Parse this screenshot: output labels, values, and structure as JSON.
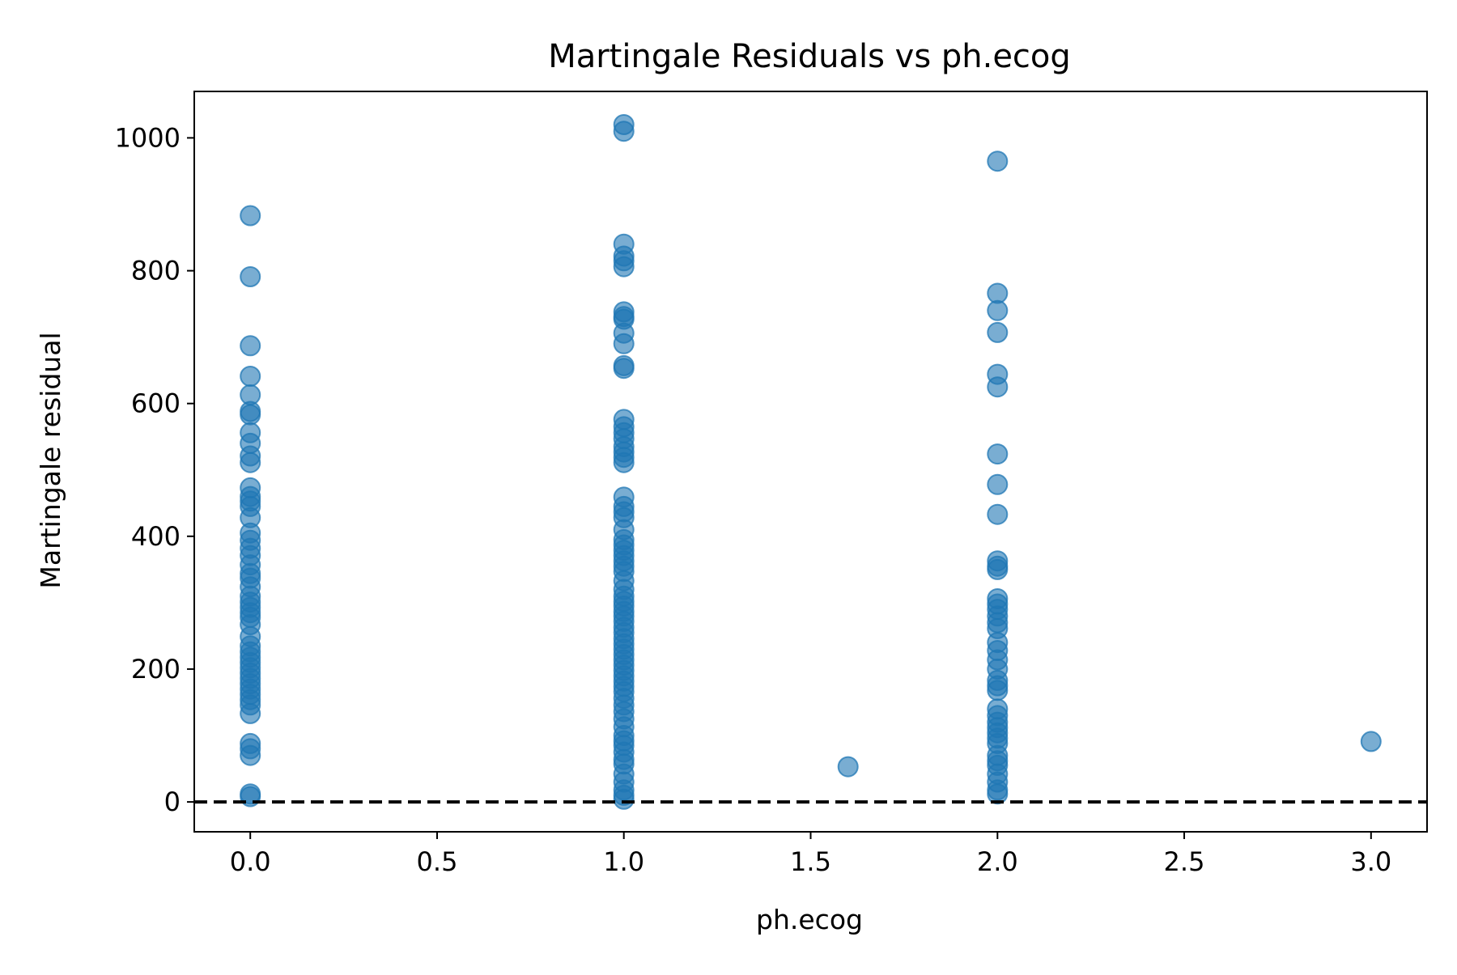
{
  "chart_data": {
    "type": "scatter",
    "title": "Martingale Residuals vs ph.ecog",
    "xlabel": "ph.ecog",
    "ylabel": "Martingale residual",
    "xlim": [
      -0.15,
      3.15
    ],
    "ylim": [
      -45,
      1070
    ],
    "x_ticks": [
      0.0,
      0.5,
      1.0,
      1.5,
      2.0,
      2.5,
      3.0
    ],
    "x_tick_labels": [
      "0.0",
      "0.5",
      "1.0",
      "1.5",
      "2.0",
      "2.5",
      "3.0"
    ],
    "y_ticks": [
      0,
      200,
      400,
      600,
      800,
      1000
    ],
    "y_tick_labels": [
      "0",
      "200",
      "400",
      "600",
      "800",
      "1000"
    ],
    "grid": false,
    "reference_line": {
      "y": 0,
      "style": "dashed",
      "color": "#000000"
    },
    "marker_color": "#1f77b4",
    "marker_alpha": 0.6,
    "series": [
      {
        "points": [
          [
            0,
            883
          ],
          [
            0,
            791
          ],
          [
            0,
            687
          ],
          [
            0,
            641
          ],
          [
            0,
            613
          ],
          [
            0,
            588
          ],
          [
            0,
            583
          ],
          [
            0,
            556
          ],
          [
            0,
            540
          ],
          [
            0,
            521
          ],
          [
            0,
            511
          ],
          [
            0,
            473
          ],
          [
            0,
            460
          ],
          [
            0,
            453
          ],
          [
            0,
            445
          ],
          [
            0,
            428
          ],
          [
            0,
            405
          ],
          [
            0,
            394
          ],
          [
            0,
            382
          ],
          [
            0,
            371
          ],
          [
            0,
            357
          ],
          [
            0,
            344
          ],
          [
            0,
            337
          ],
          [
            0,
            324
          ],
          [
            0,
            310
          ],
          [
            0,
            301
          ],
          [
            0,
            293
          ],
          [
            0,
            285
          ],
          [
            0,
            278
          ],
          [
            0,
            267
          ],
          [
            0,
            249
          ],
          [
            0,
            235
          ],
          [
            0,
            226
          ],
          [
            0,
            218
          ],
          [
            0,
            210
          ],
          [
            0,
            202
          ],
          [
            0,
            194
          ],
          [
            0,
            186
          ],
          [
            0,
            178
          ],
          [
            0,
            170
          ],
          [
            0,
            162
          ],
          [
            0,
            154
          ],
          [
            0,
            146
          ],
          [
            0,
            133
          ],
          [
            0,
            88
          ],
          [
            0,
            80
          ],
          [
            0,
            70
          ],
          [
            0,
            12
          ],
          [
            0,
            8
          ],
          [
            1,
            1020
          ],
          [
            1,
            1010
          ],
          [
            1,
            840
          ],
          [
            1,
            822
          ],
          [
            1,
            815
          ],
          [
            1,
            806
          ],
          [
            1,
            738
          ],
          [
            1,
            731
          ],
          [
            1,
            727
          ],
          [
            1,
            706
          ],
          [
            1,
            690
          ],
          [
            1,
            657
          ],
          [
            1,
            653
          ],
          [
            1,
            576
          ],
          [
            1,
            565
          ],
          [
            1,
            556
          ],
          [
            1,
            547
          ],
          [
            1,
            535
          ],
          [
            1,
            527
          ],
          [
            1,
            519
          ],
          [
            1,
            511
          ],
          [
            1,
            459
          ],
          [
            1,
            445
          ],
          [
            1,
            437
          ],
          [
            1,
            428
          ],
          [
            1,
            410
          ],
          [
            1,
            395
          ],
          [
            1,
            387
          ],
          [
            1,
            379
          ],
          [
            1,
            371
          ],
          [
            1,
            363
          ],
          [
            1,
            355
          ],
          [
            1,
            347
          ],
          [
            1,
            333
          ],
          [
            1,
            320
          ],
          [
            1,
            310
          ],
          [
            1,
            302
          ],
          [
            1,
            295
          ],
          [
            1,
            287
          ],
          [
            1,
            280
          ],
          [
            1,
            272
          ],
          [
            1,
            263
          ],
          [
            1,
            255
          ],
          [
            1,
            246
          ],
          [
            1,
            238
          ],
          [
            1,
            230
          ],
          [
            1,
            222
          ],
          [
            1,
            214
          ],
          [
            1,
            206
          ],
          [
            1,
            198
          ],
          [
            1,
            190
          ],
          [
            1,
            182
          ],
          [
            1,
            174
          ],
          [
            1,
            166
          ],
          [
            1,
            156
          ],
          [
            1,
            146
          ],
          [
            1,
            136
          ],
          [
            1,
            125
          ],
          [
            1,
            113
          ],
          [
            1,
            100
          ],
          [
            1,
            92
          ],
          [
            1,
            85
          ],
          [
            1,
            75
          ],
          [
            1,
            64
          ],
          [
            1,
            57
          ],
          [
            1,
            42
          ],
          [
            1,
            30
          ],
          [
            1,
            18
          ],
          [
            1,
            10
          ],
          [
            1,
            4
          ],
          [
            1.6,
            53
          ],
          [
            2,
            965
          ],
          [
            2,
            766
          ],
          [
            2,
            740
          ],
          [
            2,
            707
          ],
          [
            2,
            644
          ],
          [
            2,
            625
          ],
          [
            2,
            524
          ],
          [
            2,
            478
          ],
          [
            2,
            433
          ],
          [
            2,
            363
          ],
          [
            2,
            355
          ],
          [
            2,
            350
          ],
          [
            2,
            306
          ],
          [
            2,
            298
          ],
          [
            2,
            290
          ],
          [
            2,
            280
          ],
          [
            2,
            270
          ],
          [
            2,
            261
          ],
          [
            2,
            240
          ],
          [
            2,
            228
          ],
          [
            2,
            214
          ],
          [
            2,
            200
          ],
          [
            2,
            183
          ],
          [
            2,
            175
          ],
          [
            2,
            168
          ],
          [
            2,
            140
          ],
          [
            2,
            130
          ],
          [
            2,
            120
          ],
          [
            2,
            112
          ],
          [
            2,
            104
          ],
          [
            2,
            96
          ],
          [
            2,
            88
          ],
          [
            2,
            70
          ],
          [
            2,
            62
          ],
          [
            2,
            55
          ],
          [
            2,
            42
          ],
          [
            2,
            30
          ],
          [
            2,
            18
          ],
          [
            2,
            12
          ],
          [
            3,
            91
          ]
        ]
      }
    ]
  }
}
